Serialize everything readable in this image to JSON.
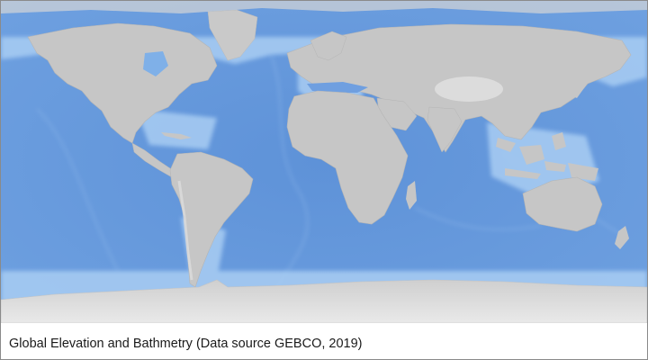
{
  "figure": {
    "caption": "Global Elevation and Bathmetry (Data source GEBCO, 2019)"
  },
  "colors": {
    "ocean_deep": "#5a8fd6",
    "ocean_mid": "#6f9fe0",
    "ocean_shelf": "#a9cdf3",
    "land": "#c6c6c6",
    "land_high": "#dedede",
    "ice": "#e2e2e2",
    "border": "#8a8a8a"
  }
}
